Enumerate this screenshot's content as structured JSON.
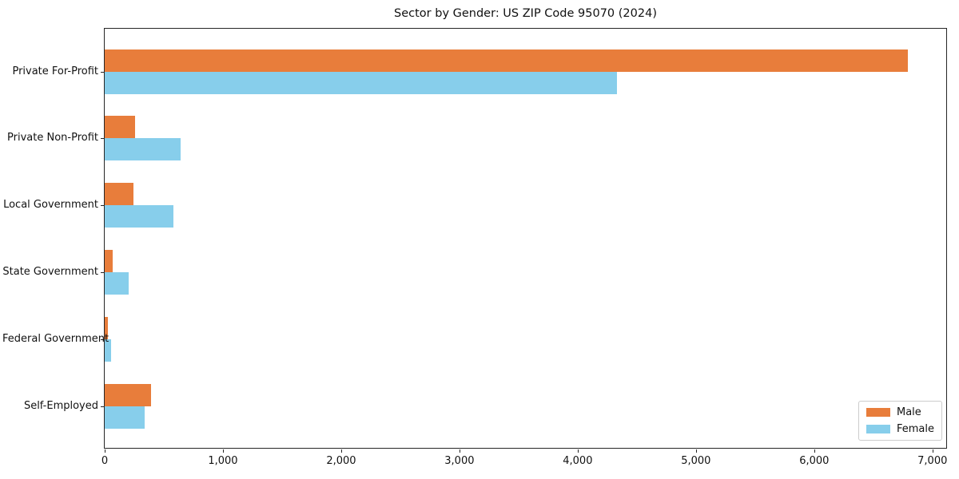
{
  "chart_data": {
    "type": "bar",
    "orientation": "horizontal",
    "title": "Sector by Gender: US ZIP Code 95070 (2024)",
    "xlabel": "",
    "ylabel": "",
    "grid": false,
    "xlim": [
      0,
      7130
    ],
    "categories": [
      "Private For-Profit",
      "Private Non-Profit",
      "Local Government",
      "State Government",
      "Federal Government",
      "Self-Employed"
    ],
    "series": [
      {
        "name": "Male",
        "color": "#E87D3B",
        "values": [
          6790,
          255,
          240,
          70,
          30,
          390
        ]
      },
      {
        "name": "Female",
        "color": "#87CEEB",
        "values": [
          4330,
          640,
          580,
          205,
          55,
          340
        ]
      }
    ],
    "x_ticks": [
      {
        "value": 0,
        "label": "0"
      },
      {
        "value": 1000,
        "label": "1,000"
      },
      {
        "value": 2000,
        "label": "2,000"
      },
      {
        "value": 3000,
        "label": "3,000"
      },
      {
        "value": 4000,
        "label": "4,000"
      },
      {
        "value": 5000,
        "label": "5,000"
      },
      {
        "value": 6000,
        "label": "6,000"
      },
      {
        "value": 7000,
        "label": "7,000"
      }
    ],
    "legend": {
      "position": "lower right"
    }
  }
}
